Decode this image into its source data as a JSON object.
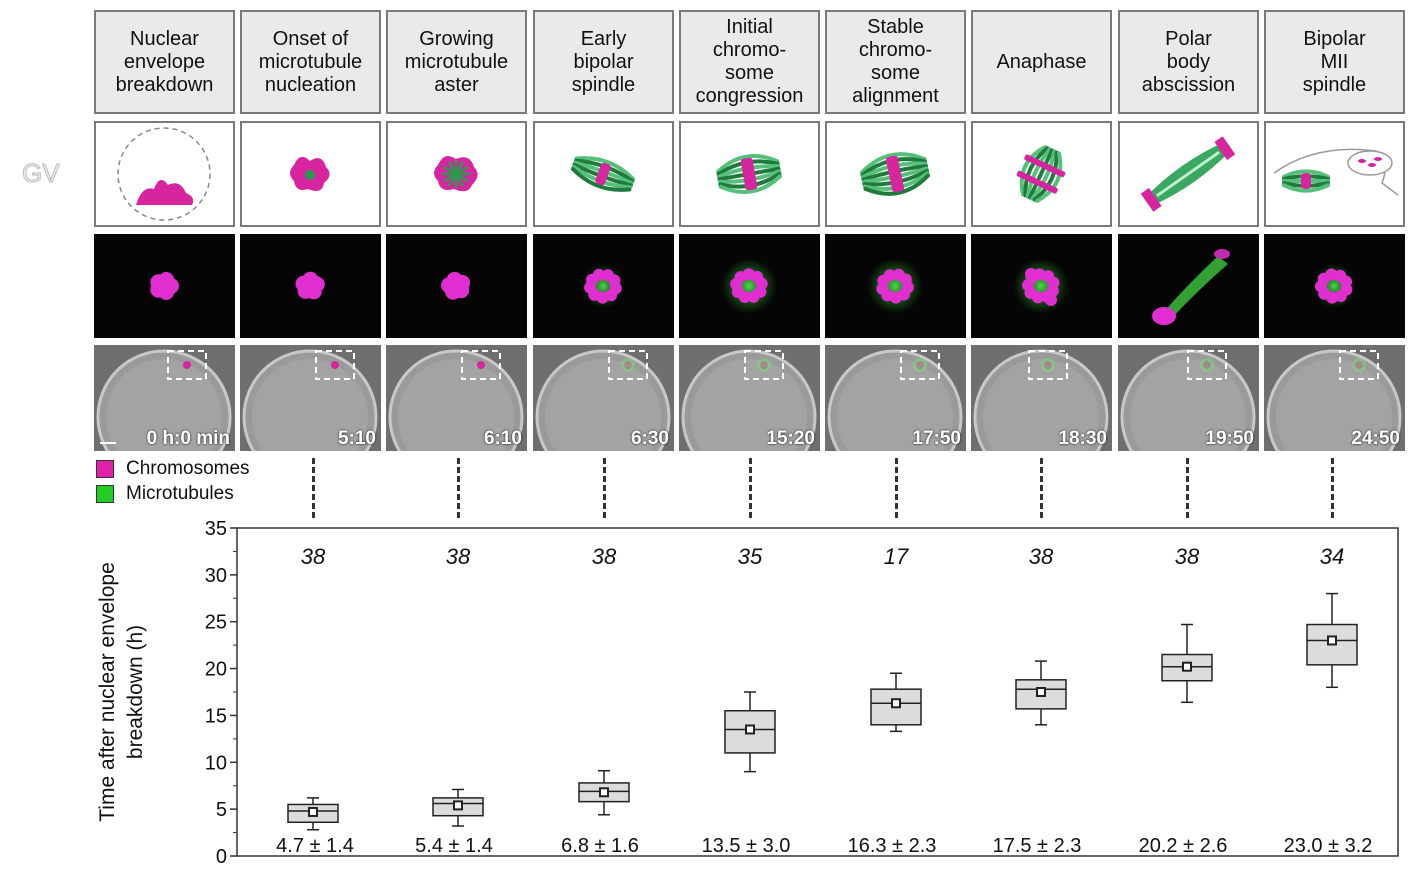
{
  "side_label": "GV",
  "stages": [
    {
      "title": "Nuclear\nenvelope\nbreakdown",
      "time": "0 h:0 min"
    },
    {
      "title": "Onset of\nmicrotubule\nnucleation",
      "time": "5:10"
    },
    {
      "title": "Growing\nmicrotubule\naster",
      "time": "6:10"
    },
    {
      "title": "Early\nbipolar\nspindle",
      "time": "6:30"
    },
    {
      "title": "Initial\nchromo-\nsome\ncongression",
      "time": "15:20"
    },
    {
      "title": "Stable\nchromo-\nsome\nalignment",
      "time": "17:50"
    },
    {
      "title": "Anaphase",
      "time": "18:30"
    },
    {
      "title": "Polar\nbody\nabscission",
      "time": "19:50"
    },
    {
      "title": "Bipolar\nMII\nspindle",
      "time": "24:50"
    }
  ],
  "legend": [
    {
      "label": "Chromosomes",
      "color": "#e020a8"
    },
    {
      "label": "Microtubules",
      "color": "#22cc22"
    }
  ],
  "colors": {
    "chromosome": "#d6259f",
    "microtubule": "#2a9a4e",
    "box_fill": "#dcdcdc"
  },
  "chart_data": {
    "type": "box",
    "ylabel": "Time after nuclear envelope\nbreakdown (h)",
    "ylim": [
      0,
      35
    ],
    "yticks": [
      0,
      5,
      10,
      15,
      20,
      25,
      30,
      35
    ],
    "categories": [
      "Onset of microtubule nucleation",
      "Growing microtubule aster",
      "Early bipolar spindle",
      "Initial chromosome congression",
      "Stable chromosome alignment",
      "Anaphase",
      "Polar body abscission",
      "Bipolar MII spindle"
    ],
    "n": [
      "38",
      "38",
      "38",
      "35",
      "17",
      "38",
      "38",
      "34"
    ],
    "stats": [
      "4.7 ± 1.4",
      "5.4 ± 1.4",
      "6.8 ± 1.6",
      "13.5 ± 3.0",
      "16.3 ± 2.3",
      "17.5 ± 2.3",
      "20.2 ± 2.6",
      "23.0 ± 3.2"
    ],
    "boxes": [
      {
        "mean": 4.7,
        "q1": 3.6,
        "median": 4.8,
        "q3": 5.5,
        "min": 2.8,
        "max": 6.2
      },
      {
        "mean": 5.4,
        "q1": 4.3,
        "median": 5.6,
        "q3": 6.2,
        "min": 3.2,
        "max": 7.1
      },
      {
        "mean": 6.8,
        "q1": 5.8,
        "median": 6.9,
        "q3": 7.8,
        "min": 4.4,
        "max": 9.1
      },
      {
        "mean": 13.5,
        "q1": 11.0,
        "median": 13.5,
        "q3": 15.5,
        "min": 9.0,
        "max": 17.5
      },
      {
        "mean": 16.3,
        "q1": 14.0,
        "median": 16.3,
        "q3": 17.8,
        "min": 13.3,
        "max": 19.5
      },
      {
        "mean": 17.5,
        "q1": 15.7,
        "median": 17.8,
        "q3": 18.8,
        "min": 14.0,
        "max": 20.8
      },
      {
        "mean": 20.2,
        "q1": 18.7,
        "median": 20.2,
        "q3": 21.5,
        "min": 16.4,
        "max": 24.7
      },
      {
        "mean": 23.0,
        "q1": 20.4,
        "median": 23.0,
        "q3": 24.7,
        "min": 18.0,
        "max": 28.0
      }
    ]
  }
}
